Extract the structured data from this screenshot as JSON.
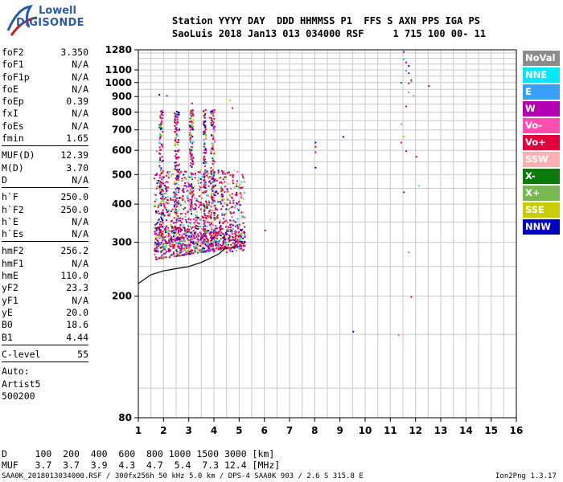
{
  "logo": {
    "line1": "Lowell",
    "line2": "DIGISONDE"
  },
  "header": {
    "line1": "Station YYYY DAY  DDD HHMMSS P1  FFS S AXN PPS IGA PS",
    "line2": "SaoLuis 2018 Jan13 013 034000 RSF     1 715 100 00- 11"
  },
  "params": {
    "g1": [
      {
        "label": "foF2",
        "value": "3.350"
      },
      {
        "label": "foF1",
        "value": "N/A"
      },
      {
        "label": "foF1p",
        "value": "N/A"
      },
      {
        "label": "foE",
        "value": "N/A"
      },
      {
        "label": "foEp",
        "value": "0.39"
      },
      {
        "label": "fxI",
        "value": "N/A"
      },
      {
        "label": "foEs",
        "value": "N/A"
      },
      {
        "label": "fmin",
        "value": "1.65"
      }
    ],
    "g2": [
      {
        "label": "MUF(D)",
        "value": "12.39"
      },
      {
        "label": "M(D)",
        "value": "3.70"
      },
      {
        "label": "D",
        "value": "N/A"
      }
    ],
    "g3": [
      {
        "label": "h`F",
        "value": "250.0"
      },
      {
        "label": "h`F2",
        "value": "250.0"
      },
      {
        "label": "h`E",
        "value": "N/A"
      },
      {
        "label": "h`Es",
        "value": "N/A"
      }
    ],
    "g4": [
      {
        "label": "hmF2",
        "value": "256.2"
      },
      {
        "label": "hmF1",
        "value": "N/A"
      },
      {
        "label": "hmE",
        "value": "110.0"
      },
      {
        "label": "yF2",
        "value": "23.3"
      },
      {
        "label": "yF1",
        "value": "N/A"
      },
      {
        "label": "yE",
        "value": "20.0"
      },
      {
        "label": "B0",
        "value": "18.6"
      },
      {
        "label": "B1",
        "value": "4.44"
      }
    ],
    "g5": [
      {
        "label": "C-level",
        "value": "55"
      }
    ]
  },
  "auto": {
    "line1": "Auto:",
    "line2": "Artist5",
    "line3": "500200"
  },
  "legend": [
    {
      "label": "NoVal",
      "bg": "#8c8c8c",
      "fg": "#ffffff"
    },
    {
      "label": "NNE",
      "bg": "#00e8ff",
      "fg": "#ffffff"
    },
    {
      "label": "E",
      "bg": "#3aa0ff",
      "fg": "#ffffff"
    },
    {
      "label": "W",
      "bg": "#b000b0",
      "fg": "#ffffff"
    },
    {
      "label": "Vo-",
      "bg": "#ff4fb0",
      "fg": "#ffffff"
    },
    {
      "label": "Vo+",
      "bg": "#e0003c",
      "fg": "#ffffff"
    },
    {
      "label": "SSW",
      "bg": "#ffb0b0",
      "fg": "#ffffff"
    },
    {
      "label": "X-",
      "bg": "#0a7a0a",
      "fg": "#ffffff"
    },
    {
      "label": "X+",
      "bg": "#78b850",
      "fg": "#ffffff"
    },
    {
      "label": "SSE",
      "bg": "#c8cc00",
      "fg": "#ffffff"
    },
    {
      "label": "NNW",
      "bg": "#0000c0",
      "fg": "#ffffff"
    }
  ],
  "footer": {
    "d_line": "D     100  200  400  600  800 1000 1500 3000 [km]",
    "muf_line": "MUF   3.7  3.7  3.9  4.3  4.7  5.4  7.3 12.4 [MHz]",
    "file_line": "SAA0K_2018013034000.RSF / 300fx256h 50 kHz 5.0 km / DPS-4 SAA0K 903 / 2.6 S 315.8 E",
    "version": "Ion2Png 1.3.17"
  },
  "chart_data": {
    "type": "scatter",
    "title": "",
    "xlabel": "",
    "ylabel": "",
    "xlim": [
      1,
      16
    ],
    "ylim": [
      80,
      1280
    ],
    "y_scale": "log",
    "x_ticks": [
      "1",
      "2",
      "3",
      "4",
      "5",
      "6",
      "7",
      "8",
      "9",
      "10",
      "11",
      "12",
      "13",
      "14",
      "15",
      "16"
    ],
    "y_ticks": [
      80,
      200,
      300,
      400,
      500,
      600,
      700,
      800,
      900,
      1000,
      1100,
      1280
    ],
    "grid": true,
    "frame_color": "#000000",
    "dots": [
      [
        1.8,
        918,
        "#0000c0"
      ],
      [
        1.9,
        320,
        "#e0003c"
      ],
      [
        2.1,
        910,
        "#b000b0"
      ],
      [
        2.5,
        540,
        "#e0003c"
      ],
      [
        3.1,
        860,
        "#b000b0"
      ],
      [
        3.6,
        690,
        "#e0003c"
      ],
      [
        3.8,
        772,
        "#b000b0"
      ],
      [
        4.6,
        880,
        "#c8cc00"
      ],
      [
        4.7,
        830,
        "#e0003c"
      ],
      [
        1.7,
        600,
        "#ff4fb0"
      ],
      [
        8.0,
        640,
        "#0000c0"
      ],
      [
        8.0,
        620,
        "#e0003c"
      ],
      [
        8.0,
        595,
        "#b000b0"
      ],
      [
        8.0,
        530,
        "#0000c0"
      ],
      [
        9.1,
        668,
        "#0000c0"
      ],
      [
        9.5,
        154,
        "#0000c0"
      ],
      [
        11.4,
        1005,
        "#0a7a0a"
      ],
      [
        11.5,
        1268,
        "#b000b0"
      ],
      [
        11.5,
        1200,
        "#00e8ff"
      ],
      [
        11.6,
        1170,
        "#b000b0"
      ],
      [
        11.7,
        1140,
        "#0000c0"
      ],
      [
        11.6,
        1100,
        "#3aa0ff"
      ],
      [
        11.7,
        1080,
        "#e0003c"
      ],
      [
        11.8,
        1025,
        "#0a7a0a"
      ],
      [
        11.8,
        1012,
        "#78b850"
      ],
      [
        11.7,
        1000,
        "#e0003c"
      ],
      [
        11.7,
        935,
        "#78b850"
      ],
      [
        11.6,
        840,
        "#b000b0"
      ],
      [
        11.4,
        735,
        "#78b850"
      ],
      [
        11.5,
        670,
        "#c8cc00"
      ],
      [
        11.4,
        640,
        "#e0003c"
      ],
      [
        11.6,
        600,
        "#b000b0"
      ],
      [
        11.5,
        440,
        "#e0003c"
      ],
      [
        11.7,
        280,
        "#ff4fb0"
      ],
      [
        11.8,
        200,
        "#e0003c"
      ],
      [
        11.3,
        150,
        "#ff4fb0"
      ],
      [
        12.0,
        575,
        "#e0003c"
      ],
      [
        12.1,
        462,
        "#00e8ff"
      ],
      [
        12.5,
        980,
        "#e0003c"
      ],
      [
        11.9,
        910,
        "#78b850"
      ],
      [
        6.2,
        358,
        "#ffb0b0"
      ],
      [
        6.0,
        330,
        "#e0003c"
      ]
    ],
    "vertical_bands": [
      [
        1.8,
        1.95
      ],
      [
        2.4,
        2.6
      ],
      [
        3.0,
        3.15
      ],
      [
        3.55,
        3.65
      ],
      [
        3.85,
        4.0
      ]
    ],
    "main_cloud_range": {
      "x": [
        1.0,
        5.2
      ],
      "y": [
        220,
        520
      ]
    },
    "trace": [
      [
        1.0,
        220
      ],
      [
        1.5,
        235
      ],
      [
        2.0,
        242
      ],
      [
        2.5,
        246
      ],
      [
        3.0,
        250
      ],
      [
        3.5,
        258
      ],
      [
        3.8,
        265
      ],
      [
        4.2,
        275
      ],
      [
        4.5,
        290
      ]
    ]
  }
}
